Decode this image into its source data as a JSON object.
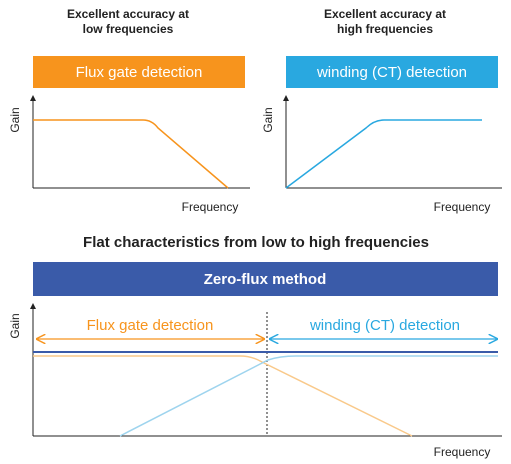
{
  "panels": [
    {
      "heading": [
        "Excellent accuracy at",
        "low frequencies"
      ],
      "banner": "Flux gate detection",
      "y_label": "Gain",
      "x_label": "Frequency"
    },
    {
      "heading": [
        "Excellent accuracy at",
        "high frequencies"
      ],
      "banner": "winding (CT) detection",
      "y_label": "Gain",
      "x_label": "Frequency"
    }
  ],
  "combined": {
    "title": "Flat characteristics from low to high frequencies",
    "banner": "Zero-flux method",
    "left_range": "Flux gate detection",
    "right_range": "winding (CT) detection",
    "y_label": "Gain",
    "x_label": "Frequency"
  }
}
